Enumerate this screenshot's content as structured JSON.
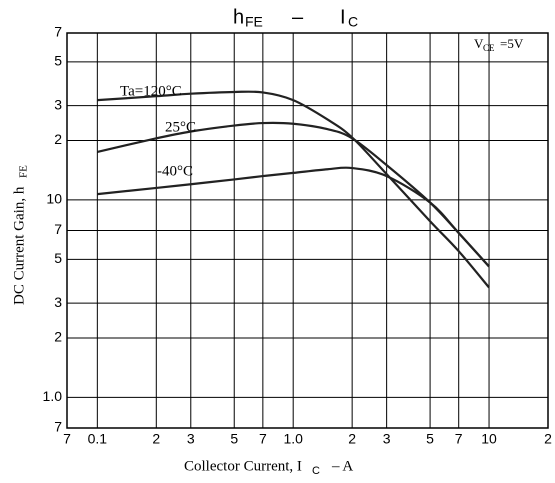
{
  "chart_data": {
    "type": "line",
    "title": {
      "main": "h",
      "main_sub": "FE",
      "dash": "–",
      "second": "I",
      "second_sub": "C"
    },
    "y_label": {
      "text": "DC Current Gain, h",
      "sub": "FE"
    },
    "x_label": {
      "text": "Collector Current, I",
      "sub": "C",
      "unit": "–  A"
    },
    "condition": {
      "text": "V",
      "sub": "CE",
      "rest": "=5V"
    },
    "log_x": true,
    "log_y": true,
    "grid": true,
    "xlim": [
      0.07,
      20
    ],
    "xticks": [
      {
        "value": 0.07,
        "label": "7"
      },
      0.1,
      {
        "value": 0.2,
        "label": "2"
      },
      {
        "value": 0.3,
        "label": "3"
      },
      {
        "value": 0.5,
        "label": "5"
      },
      {
        "value": 0.7,
        "label": "7"
      },
      {
        "value": 1,
        "label": "1.0"
      },
      2,
      3,
      5,
      7,
      10,
      {
        "value": 20,
        "label": "2"
      }
    ],
    "ylim": [
      7,
      700
    ],
    "yticks": [
      7,
      {
        "value": 10,
        "label": "1.0"
      },
      {
        "value": 20,
        "label": "2"
      },
      {
        "value": 30,
        "label": "3"
      },
      {
        "value": 50,
        "label": "5"
      },
      {
        "value": 70,
        "label": "7"
      },
      {
        "value": 100,
        "label": "10"
      },
      {
        "value": 200,
        "label": "2"
      },
      {
        "value": 300,
        "label": "3"
      },
      {
        "value": 500,
        "label": "5"
      },
      {
        "value": 700,
        "label": "7"
      }
    ],
    "x": [
      0.1,
      0.2,
      0.3,
      0.5,
      0.7,
      1,
      1.5,
      2,
      3,
      5,
      7,
      10
    ],
    "series": [
      {
        "name": "Ta=120°C",
        "color": "#222222",
        "values": [
          320,
          335,
          345,
          352,
          350,
          320,
          255,
          207,
          135,
          78,
          55,
          36
        ]
      },
      {
        "name": "25°C",
        "color": "#222222",
        "values": [
          175,
          205,
          222,
          238,
          245,
          243,
          228,
          205,
          150,
          97,
          68,
          46
        ]
      },
      {
        "name": "-40°C",
        "color": "#222222",
        "values": [
          107,
          115,
          120,
          127,
          132,
          137,
          143,
          145,
          132,
          97,
          68,
          46
        ]
      }
    ]
  }
}
